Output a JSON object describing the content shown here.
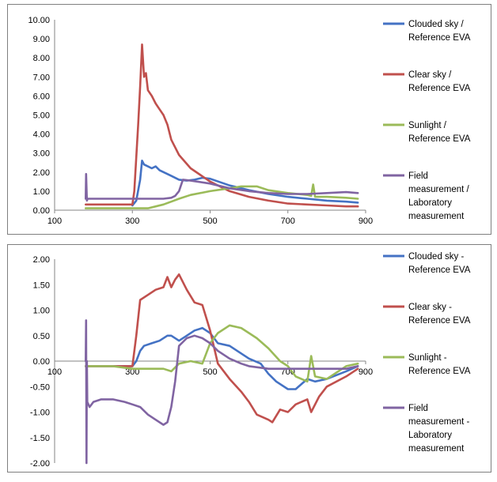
{
  "chart_data": [
    {
      "type": "line",
      "title": "",
      "xlabel": "",
      "ylabel": "",
      "xlim": [
        100,
        900
      ],
      "ylim": [
        0,
        10
      ],
      "x_ticks": [
        "100",
        "300",
        "500",
        "700",
        "900"
      ],
      "y_ticks": [
        "0.00",
        "1.00",
        "2.00",
        "3.00",
        "4.00",
        "5.00",
        "6.00",
        "7.00",
        "8.00",
        "9.00",
        "10.00"
      ],
      "legend_position": "right",
      "series": [
        {
          "name": "Clouded sky / Reference EVA",
          "legend_lines": [
            "Clouded sky /",
            "Reference EVA"
          ],
          "color": "#4472c4",
          "x": [
            300,
            310,
            320,
            325,
            330,
            340,
            350,
            360,
            370,
            380,
            390,
            400,
            420,
            440,
            460,
            480,
            500,
            550,
            600,
            650,
            700,
            750,
            800,
            850,
            880
          ],
          "y": [
            0.25,
            0.5,
            1.6,
            2.6,
            2.4,
            2.3,
            2.2,
            2.3,
            2.1,
            2.0,
            1.9,
            1.8,
            1.6,
            1.55,
            1.6,
            1.7,
            1.65,
            1.3,
            1.05,
            0.85,
            0.7,
            0.6,
            0.5,
            0.45,
            0.4
          ]
        },
        {
          "name": "Clear sky / Reference EVA",
          "legend_lines": [
            "Clear sky /",
            "Reference EVA"
          ],
          "color": "#c0504d",
          "x": [
            180,
            200,
            250,
            300,
            305,
            315,
            320,
            325,
            330,
            335,
            340,
            350,
            360,
            370,
            380,
            390,
            400,
            420,
            450,
            500,
            550,
            600,
            650,
            700,
            750,
            800,
            850,
            880
          ],
          "y": [
            0.3,
            0.3,
            0.3,
            0.3,
            1.0,
            4.5,
            6.5,
            8.7,
            7.0,
            7.2,
            6.3,
            6.0,
            5.6,
            5.3,
            5.0,
            4.5,
            3.7,
            2.9,
            2.2,
            1.5,
            1.0,
            0.7,
            0.5,
            0.35,
            0.3,
            0.25,
            0.2,
            0.2
          ]
        },
        {
          "name": "Sunlight / Reference EVA",
          "legend_lines": [
            "Sunlight /",
            "Reference EVA"
          ],
          "color": "#9bbb59",
          "x": [
            180,
            250,
            300,
            340,
            380,
            400,
            420,
            450,
            500,
            550,
            580,
            620,
            650,
            700,
            750,
            760,
            765,
            770,
            800,
            850,
            880
          ],
          "y": [
            0.1,
            0.1,
            0.1,
            0.1,
            0.3,
            0.45,
            0.6,
            0.8,
            1.0,
            1.15,
            1.25,
            1.25,
            1.05,
            0.9,
            0.8,
            0.75,
            1.35,
            0.7,
            0.7,
            0.65,
            0.6
          ]
        },
        {
          "name": "Field measurement / Laboratory measurement",
          "legend_lines": [
            "Field",
            "measurement /",
            "Laboratory",
            "measurement"
          ],
          "color": "#8064a2",
          "x": [
            180,
            181,
            183,
            185,
            200,
            250,
            300,
            350,
            380,
            400,
            410,
            420,
            430,
            450,
            500,
            550,
            600,
            650,
            700,
            750,
            800,
            850,
            880
          ],
          "y": [
            0.6,
            1.9,
            0.5,
            0.6,
            0.6,
            0.6,
            0.6,
            0.6,
            0.6,
            0.65,
            0.75,
            1.0,
            1.6,
            1.55,
            1.4,
            1.15,
            1.0,
            0.9,
            0.85,
            0.85,
            0.9,
            0.95,
            0.9
          ]
        }
      ]
    },
    {
      "type": "line",
      "title": "",
      "xlabel": "",
      "ylabel": "",
      "xlim": [
        100,
        900
      ],
      "ylim": [
        -2,
        2
      ],
      "x_ticks": [
        "100",
        "300",
        "500",
        "700",
        "900"
      ],
      "y_ticks": [
        "-2.00",
        "-1.50",
        "-1.00",
        "-0.50",
        "0.00",
        "0.50",
        "1.00",
        "1.50",
        "2.00"
      ],
      "legend_position": "right",
      "series": [
        {
          "name": "Clouded sky - Reference EVA",
          "legend_lines": [
            "Clouded sky -",
            "Reference EVA"
          ],
          "color": "#4472c4",
          "x": [
            180,
            250,
            300,
            310,
            320,
            330,
            350,
            370,
            390,
            400,
            420,
            440,
            460,
            480,
            490,
            500,
            520,
            550,
            600,
            630,
            650,
            670,
            700,
            720,
            750,
            770,
            800,
            850,
            880
          ],
          "y": [
            -0.1,
            -0.1,
            -0.1,
            0.0,
            0.2,
            0.3,
            0.35,
            0.4,
            0.5,
            0.5,
            0.4,
            0.5,
            0.6,
            0.65,
            0.6,
            0.55,
            0.35,
            0.3,
            0.05,
            -0.05,
            -0.25,
            -0.4,
            -0.55,
            -0.55,
            -0.35,
            -0.4,
            -0.35,
            -0.2,
            -0.1
          ]
        },
        {
          "name": "Clear sky - Reference EVA",
          "legend_lines": [
            "Clear sky -",
            "Reference EVA"
          ],
          "color": "#c0504d",
          "x": [
            180,
            250,
            300,
            310,
            320,
            340,
            360,
            380,
            390,
            400,
            410,
            420,
            440,
            460,
            480,
            500,
            520,
            550,
            580,
            600,
            620,
            650,
            660,
            680,
            700,
            720,
            750,
            760,
            780,
            800,
            850,
            880
          ],
          "y": [
            -0.1,
            -0.1,
            -0.1,
            0.5,
            1.2,
            1.3,
            1.4,
            1.45,
            1.65,
            1.45,
            1.6,
            1.7,
            1.4,
            1.15,
            1.1,
            0.6,
            -0.05,
            -0.35,
            -0.6,
            -0.8,
            -1.05,
            -1.15,
            -1.2,
            -0.95,
            -1.0,
            -0.85,
            -0.75,
            -1.0,
            -0.7,
            -0.5,
            -0.3,
            -0.15
          ]
        },
        {
          "name": "Sunlight - Reference EVA",
          "legend_lines": [
            "Sunlight -",
            "Reference EVA"
          ],
          "color": "#9bbb59",
          "x": [
            180,
            250,
            300,
            340,
            380,
            400,
            420,
            450,
            480,
            500,
            520,
            550,
            580,
            600,
            620,
            650,
            680,
            700,
            720,
            750,
            760,
            770,
            800,
            850,
            880
          ],
          "y": [
            -0.1,
            -0.1,
            -0.15,
            -0.15,
            -0.15,
            -0.2,
            -0.05,
            0.0,
            -0.05,
            0.35,
            0.55,
            0.7,
            0.65,
            0.55,
            0.45,
            0.25,
            0.0,
            -0.1,
            -0.3,
            -0.4,
            0.1,
            -0.3,
            -0.35,
            -0.1,
            -0.05
          ]
        },
        {
          "name": "Field measurement - Laboratory measurement",
          "legend_lines": [
            "Field",
            "measurement -",
            "Laboratory",
            "measurement"
          ],
          "color": "#8064a2",
          "x": [
            180,
            181,
            182,
            183,
            184,
            190,
            200,
            220,
            250,
            280,
            300,
            320,
            340,
            360,
            380,
            390,
            400,
            410,
            420,
            440,
            460,
            480,
            500,
            520,
            550,
            580,
            600,
            650,
            700,
            750,
            800,
            850,
            880
          ],
          "y": [
            0.0,
            0.8,
            -2.0,
            0.0,
            -0.8,
            -0.9,
            -0.8,
            -0.75,
            -0.75,
            -0.8,
            -0.85,
            -0.9,
            -1.05,
            -1.15,
            -1.25,
            -1.2,
            -0.9,
            -0.4,
            0.3,
            0.45,
            0.5,
            0.45,
            0.35,
            0.2,
            0.05,
            -0.05,
            -0.1,
            -0.15,
            -0.15,
            -0.15,
            -0.15,
            -0.15,
            -0.1
          ]
        }
      ]
    }
  ]
}
